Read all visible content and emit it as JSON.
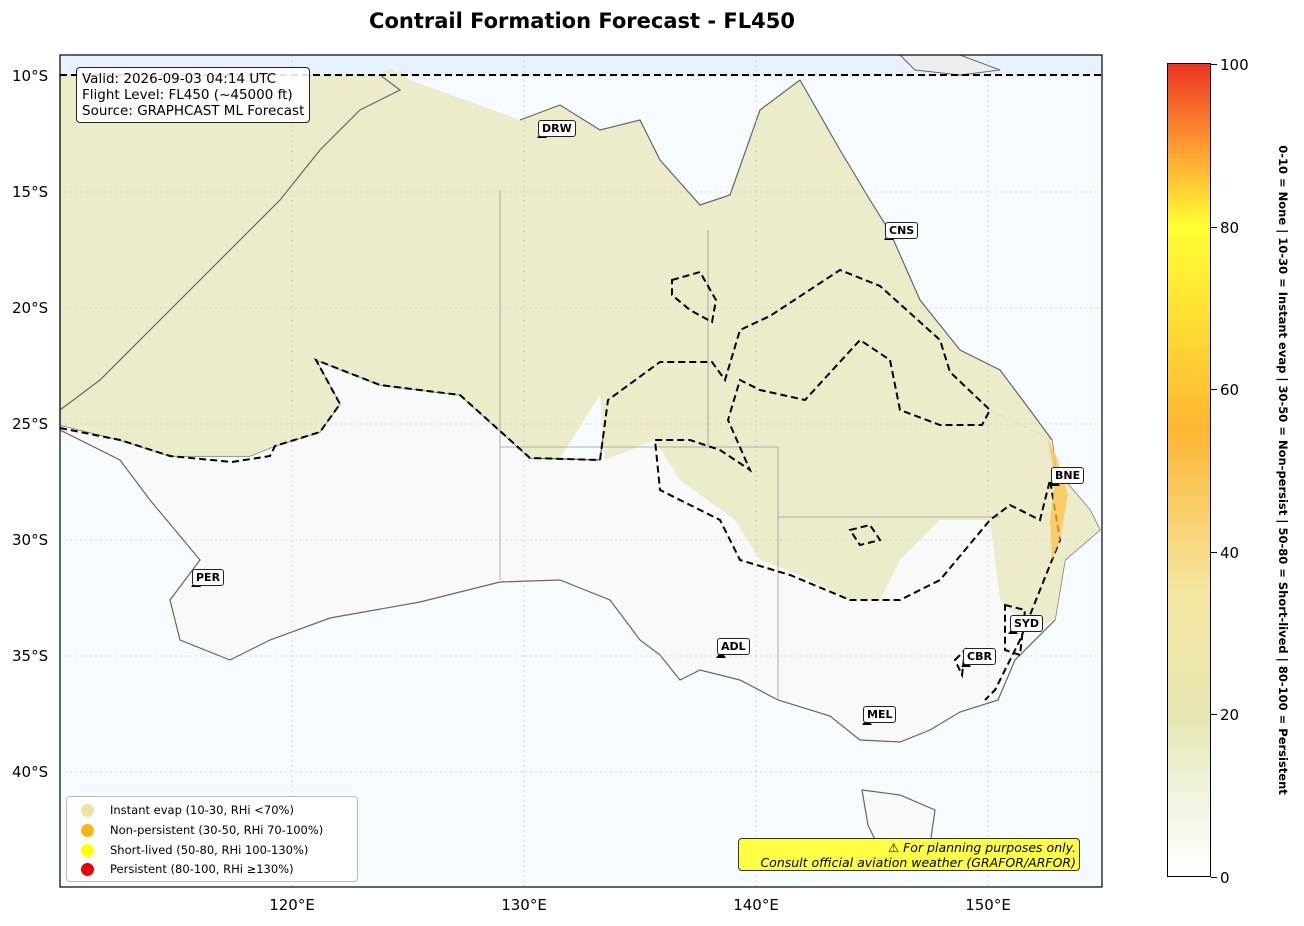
{
  "title": "Contrail Formation Forecast - FL450",
  "info": {
    "valid": "Valid: 2026-09-03 04:14 UTC",
    "flight_level": "Flight Level: FL450 (~45000 ft)",
    "source": "Source: GRAPHCAST ML Forecast"
  },
  "lat_labels": [
    "10°S",
    "15°S",
    "20°S",
    "25°S",
    "30°S",
    "35°S",
    "40°S"
  ],
  "lon_labels": [
    "120°E",
    "130°E",
    "140°E",
    "150°E"
  ],
  "cities": [
    "DRW",
    "CNS",
    "BNE",
    "PER",
    "ADL",
    "SYD",
    "CBR",
    "MEL"
  ],
  "legend": [
    {
      "label": "Instant evap (10-30, RHi <70%)",
      "color": "#f2e2a0"
    },
    {
      "label": "Non-persistent (30-50, RHi 70-100%)",
      "color": "#ffb319"
    },
    {
      "label": "Short-lived (50-80, RHi 100-130%)",
      "color": "#ffff00"
    },
    {
      "label": "Persistent (80-100, RHi ≥130%)",
      "color": "#ee0000"
    }
  ],
  "disclaimer": {
    "line1": "⚠ For planning purposes only.",
    "line2": "Consult official aviation weather (GRAFOR/ARFOR)"
  },
  "colorbar": {
    "ticks": [
      "0",
      "20",
      "40",
      "60",
      "80",
      "100"
    ],
    "caption": "0-10 = None  |  10-30 = Instant evap  |  30-50 = Non-persist  |  50-80 = Short-lived  |  80-100 = Persistent"
  }
}
